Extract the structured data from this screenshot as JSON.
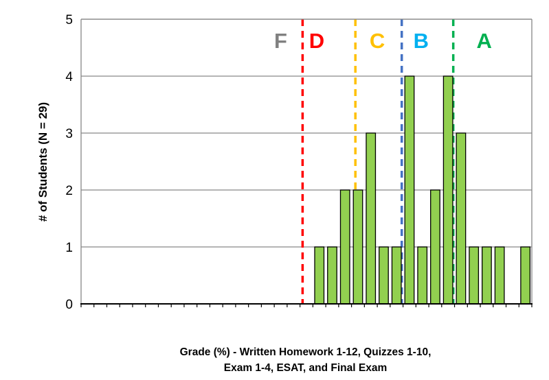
{
  "chart_data": {
    "type": "bar",
    "ylabel": "# of Students (N = 29)",
    "xlabel_lines": [
      "Grade (%) - Written Homework 1-12, Quizzes 1-10,",
      "Exam 1-4, ESAT, and Final Exam"
    ],
    "ylim": [
      0,
      5
    ],
    "yticks": [
      "0",
      "1",
      "2",
      "3",
      "4",
      "5"
    ],
    "xlim": [
      0,
      35
    ],
    "bar_color": "#92d050",
    "bars": [
      {
        "x": 18,
        "value": 1
      },
      {
        "x": 19,
        "value": 1
      },
      {
        "x": 20,
        "value": 2
      },
      {
        "x": 21,
        "value": 2
      },
      {
        "x": 22,
        "value": 3
      },
      {
        "x": 23,
        "value": 1
      },
      {
        "x": 24,
        "value": 1
      },
      {
        "x": 25,
        "value": 4
      },
      {
        "x": 26,
        "value": 1
      },
      {
        "x": 27,
        "value": 2
      },
      {
        "x": 28,
        "value": 4
      },
      {
        "x": 29,
        "value": 3
      },
      {
        "x": 30,
        "value": 1
      },
      {
        "x": 31,
        "value": 1
      },
      {
        "x": 32,
        "value": 1
      },
      {
        "x": 34,
        "value": 1
      }
    ],
    "grade_boundaries": [
      {
        "x": 17.2,
        "color": "#ff0000"
      },
      {
        "x": 21.3,
        "color": "#ffc000"
      },
      {
        "x": 24.9,
        "color": "#4472c4"
      },
      {
        "x": 28.9,
        "color": "#00b050"
      }
    ],
    "grade_labels": [
      {
        "text": "F",
        "x": 15.5,
        "color": "#808080"
      },
      {
        "text": "D",
        "x": 18.3,
        "color": "#ff0000"
      },
      {
        "text": "C",
        "x": 23.0,
        "color": "#ffc000"
      },
      {
        "text": "B",
        "x": 26.4,
        "color": "#00b0f0"
      },
      {
        "text": "A",
        "x": 31.3,
        "color": "#00b050"
      }
    ],
    "grid": true
  }
}
